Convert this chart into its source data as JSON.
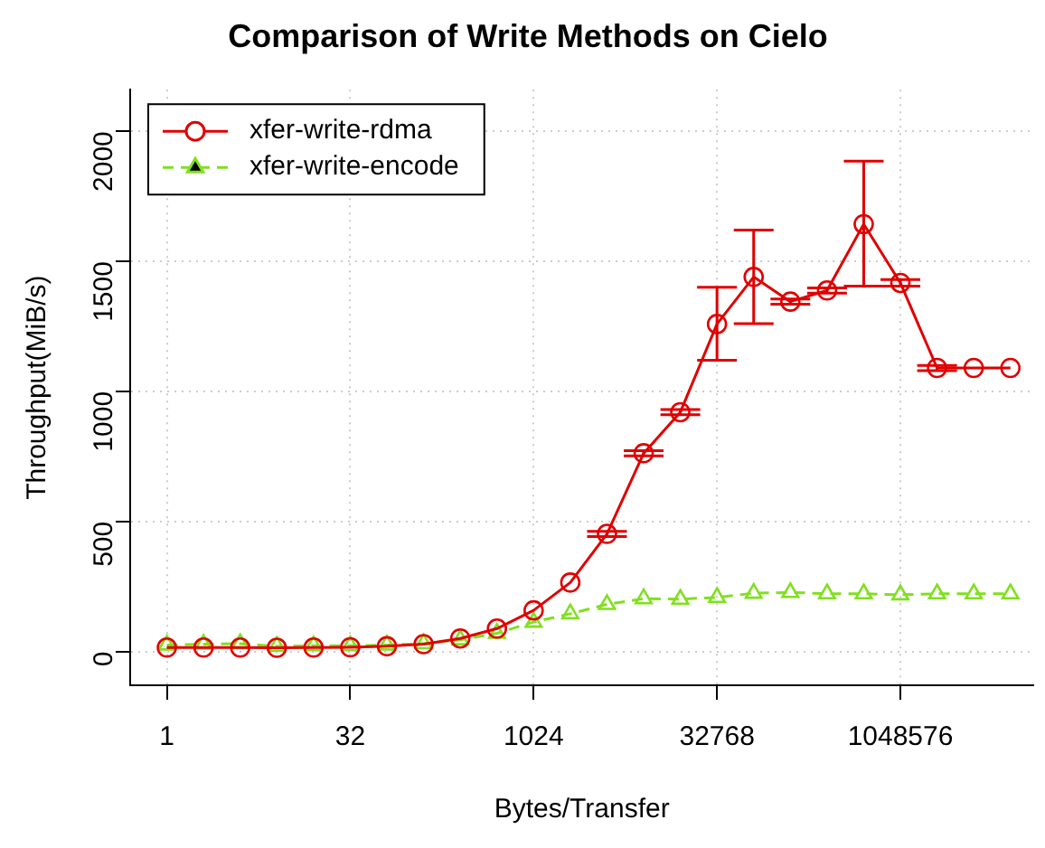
{
  "chart_data": {
    "type": "line",
    "title": "Comparison of Write Methods on Cielo",
    "xlabel": "Bytes/Transfer",
    "ylabel": "Throughput(MiB/s)",
    "x": [
      1,
      2,
      4,
      8,
      16,
      32,
      64,
      128,
      256,
      512,
      1024,
      2048,
      4096,
      8192,
      16384,
      32768,
      65536,
      131072,
      262144,
      524288,
      1048576,
      2097152,
      4194304,
      8388608
    ],
    "log": "x",
    "xlim": [
      0.5,
      13000000
    ],
    "xticks": [
      1,
      32,
      1024,
      32768,
      1048576
    ],
    "ylim": [
      -130,
      2160
    ],
    "yticks": [
      0,
      500,
      1000,
      1500,
      2000
    ],
    "grid": true,
    "legend": "top left",
    "series": [
      {
        "name": "xfer-write-rdma",
        "color": "#e00000",
        "marker": "circle",
        "line_style": "solid",
        "values": [
          15,
          15,
          15,
          14,
          15,
          16,
          20,
          28,
          50,
          88,
          158,
          265,
          452,
          762,
          920,
          1259,
          1440,
          1345,
          1388,
          1643,
          1417,
          1090,
          1090,
          1090
        ],
        "errors": [
          null,
          null,
          null,
          null,
          null,
          null,
          null,
          null,
          null,
          null,
          null,
          null,
          10,
          10,
          10,
          [
            1120,
            1400
          ],
          [
            1260,
            1620
          ],
          10,
          10,
          [
            1405,
            1885
          ],
          [
            1405,
            1430
          ],
          10,
          null,
          null
        ]
      },
      {
        "name": "xfer-write-encode",
        "color": "#80e020",
        "marker": "triangle",
        "line_style": "dashed",
        "values": [
          25,
          28,
          30,
          20,
          22,
          22,
          25,
          30,
          45,
          70,
          113,
          145,
          181,
          203,
          201,
          208,
          224,
          227,
          222,
          222,
          218,
          222,
          222,
          222
        ]
      }
    ]
  }
}
